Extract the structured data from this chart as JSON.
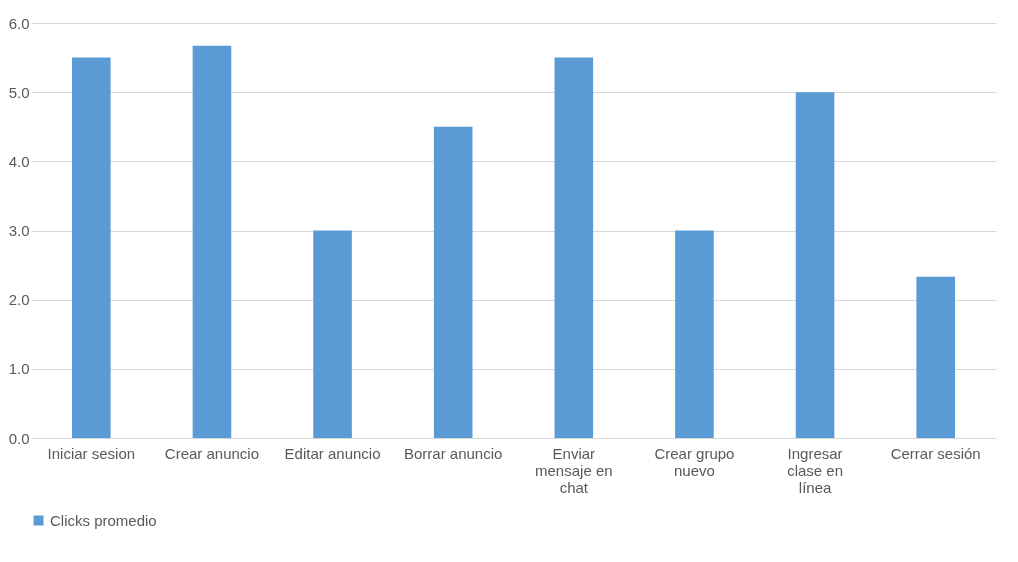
{
  "chart_data": {
    "type": "bar",
    "categories": [
      "Iniciar sesion",
      "Crear anuncio",
      "Editar anuncio",
      "Borrar anuncio",
      "Enviar mensaje en chat",
      "Crear grupo nuevo",
      "Ingresar clase en línea",
      "Cerrar sesión"
    ],
    "series": [
      {
        "name": "Clicks promedio",
        "color": "#5b9bd5",
        "values": [
          5.5,
          5.67,
          3.0,
          4.5,
          5.5,
          3.0,
          5.0,
          2.33
        ]
      }
    ],
    "ylim": [
      0,
      6
    ],
    "yticks": [
      {
        "value": 0,
        "label": "0.0"
      },
      {
        "value": 1,
        "label": "1.0"
      },
      {
        "value": 2,
        "label": "2.0"
      },
      {
        "value": 3,
        "label": "3.0"
      },
      {
        "value": 4,
        "label": "4.0"
      },
      {
        "value": 5,
        "label": "5.0"
      },
      {
        "value": 6,
        "label": "6.0"
      }
    ],
    "grid": true,
    "legend": "bottom"
  }
}
